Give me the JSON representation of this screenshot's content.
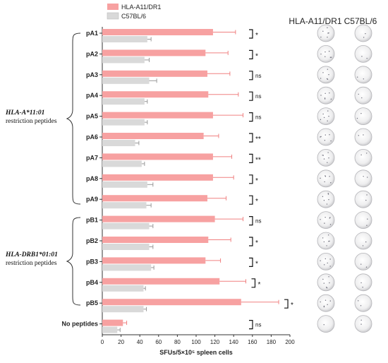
{
  "chart_data": {
    "type": "bar",
    "orientation": "horizontal",
    "xlabel": "SFUs/5×10⁵ spleen cells",
    "xlim": [
      0,
      200
    ],
    "xticks": [
      0,
      20,
      40,
      60,
      80,
      100,
      120,
      140,
      160,
      180,
      200
    ],
    "categories": [
      "pA1",
      "pA2",
      "pA3",
      "pA4",
      "pA5",
      "pA6",
      "pA7",
      "pA8",
      "pA9",
      "pB1",
      "pB2",
      "pB3",
      "pB4",
      "pB5",
      "No peptides"
    ],
    "series": [
      {
        "name": "HLA-A11/DR1",
        "color": "#f7a1a1",
        "values": [
          118,
          110,
          112,
          113,
          118,
          108,
          118,
          118,
          112,
          120,
          113,
          110,
          125,
          148,
          22
        ],
        "errors": [
          24,
          24,
          24,
          32,
          32,
          16,
          20,
          22,
          20,
          30,
          24,
          16,
          28,
          40,
          4
        ]
      },
      {
        "name": "C57BL/6",
        "color": "#d9d9d9",
        "values": [
          48,
          45,
          50,
          45,
          45,
          35,
          42,
          48,
          47,
          50,
          50,
          52,
          44,
          44,
          16
        ],
        "errors": [
          4,
          5,
          8,
          3,
          3,
          4,
          3,
          6,
          5,
          4,
          4,
          3,
          2,
          3,
          3
        ]
      }
    ],
    "significance": [
      "*",
      "*",
      "ns",
      "ns",
      "ns",
      "**",
      "**",
      "*",
      "*",
      "ns",
      "*",
      "*",
      "*",
      "*",
      "ns"
    ],
    "groups": [
      {
        "label_italic": "HLA-A*11:01",
        "label": "restriction peptides"
      },
      {
        "label_italic": "HLA-DRB1*01:01",
        "label": "restriction peptides"
      }
    ],
    "legend_position": "top",
    "grid": false
  },
  "wells": {
    "column_headers": [
      "HLA-A11/DR1",
      "C57BL/6"
    ]
  }
}
